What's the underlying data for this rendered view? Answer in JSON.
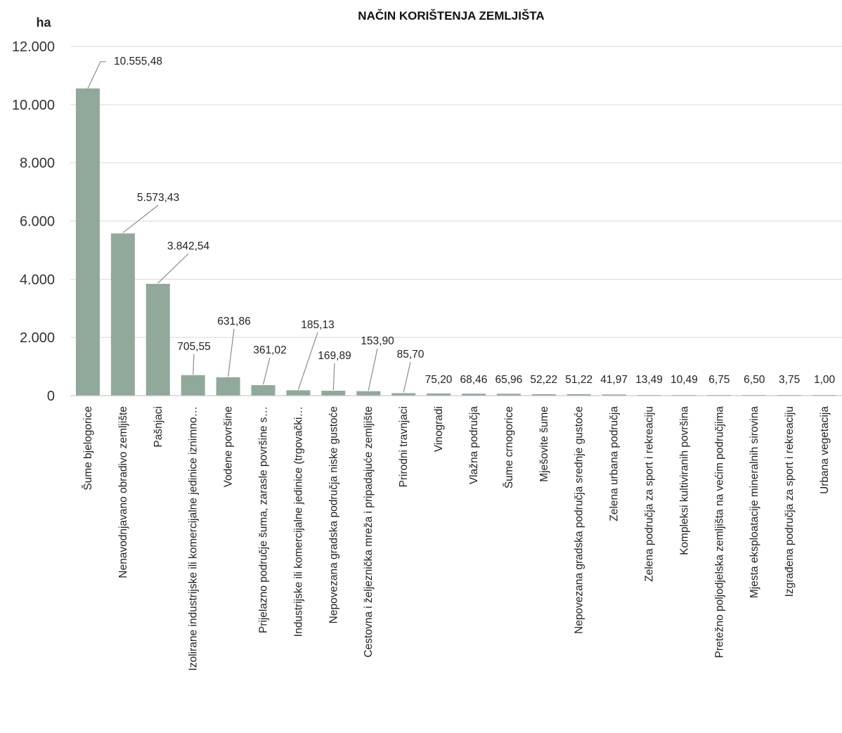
{
  "chart_data": {
    "type": "bar",
    "title": "NAČIN KORIŠTENJA ZEMLJIŠTA",
    "ylabel": "ha",
    "ylim": [
      0,
      12000
    ],
    "yticks": [
      0,
      2000,
      4000,
      6000,
      8000,
      10000,
      12000
    ],
    "ytick_labels": [
      "0",
      "2.000",
      "4.000",
      "6.000",
      "8.000",
      "10.000",
      "12.000"
    ],
    "grid": true,
    "legend": "none",
    "bar_color": "#91a99a",
    "categories": [
      "Šume bjelogorice",
      "Nenavodnjavano obradivo zemljište",
      "Pašnjaci",
      "Izolirane industrijske ili komercijalne jedinice iznimno…",
      "Vodene površine",
      "Prijelazno područje šuma, zarasle površine s…",
      "Industrijske ili komercijalne jedinice (trgovački…",
      "Nepovezana gradska područja niske gustoće",
      "Cestovna i željeznička mreža i pripadajuće zemljište",
      "Prirodni travnjaci",
      "Vinogradi",
      "Vlažna područja",
      "Šume crnogorice",
      "Mješovite šume",
      "Nepovezana gradska područja srednje gustoće",
      "Zelena urbana područja",
      "Zelena područja za sport i rekreaciju",
      "Kompleksi kultiviranih površina",
      "Pretežno poljodjelska zemljišta na većim područjima",
      "Mjesta eksploatacije mineralnih sirovina",
      "Izgrađena područja za sport i rekreaciju",
      "Urbana vegetacija"
    ],
    "values": [
      10555.48,
      5573.43,
      3842.54,
      705.55,
      631.86,
      361.02,
      185.13,
      169.89,
      153.9,
      85.7,
      75.2,
      68.46,
      65.96,
      52.22,
      51.22,
      41.97,
      13.49,
      10.49,
      6.75,
      6.5,
      3.75,
      1.0
    ],
    "data_labels": [
      "10.555,48",
      "5.573,43",
      "3.842,54",
      "705,55",
      "631,86",
      "361,02",
      "185,13",
      "169,89",
      "153,90",
      "85,70",
      "75,20",
      "68,46",
      "65,96",
      "52,22",
      "51,22",
      "41,97",
      "13,49",
      "10,49",
      "6,75",
      "6,50",
      "3,75",
      "1,00"
    ],
    "data_labels_with_leader": [
      true,
      true,
      true,
      true,
      true,
      true,
      true,
      true,
      true,
      true,
      false,
      false,
      false,
      false,
      false,
      false,
      false,
      false,
      false,
      false,
      false,
      false
    ]
  }
}
